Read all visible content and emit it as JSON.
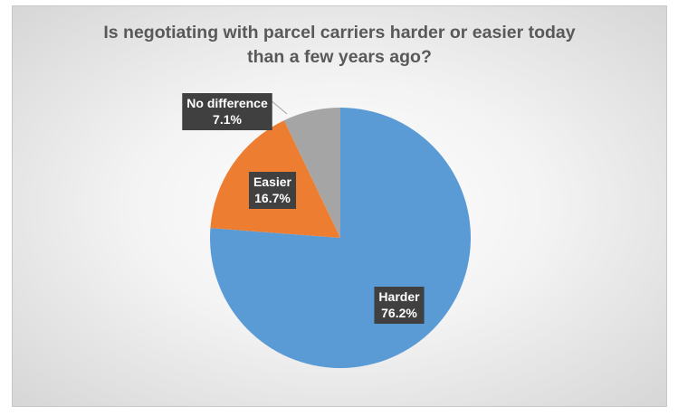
{
  "chart_data": {
    "type": "pie",
    "title_lines": [
      "Is negotiating with parcel carriers harder or easier today",
      "than a few years ago?"
    ],
    "slices": [
      {
        "label": "Harder",
        "value": 76.2,
        "value_label": "76.2%",
        "color": "#5b9bd5"
      },
      {
        "label": "Easier",
        "value": 16.7,
        "value_label": "16.7%",
        "color": "#ed7d31"
      },
      {
        "label": "No difference",
        "value": 7.1,
        "value_label": "7.1%",
        "color": "#a5a5a5"
      }
    ],
    "start": "12 o'clock",
    "direction": "clockwise",
    "label_style": "callout",
    "label_box_color": "#404040",
    "legend": "none"
  }
}
